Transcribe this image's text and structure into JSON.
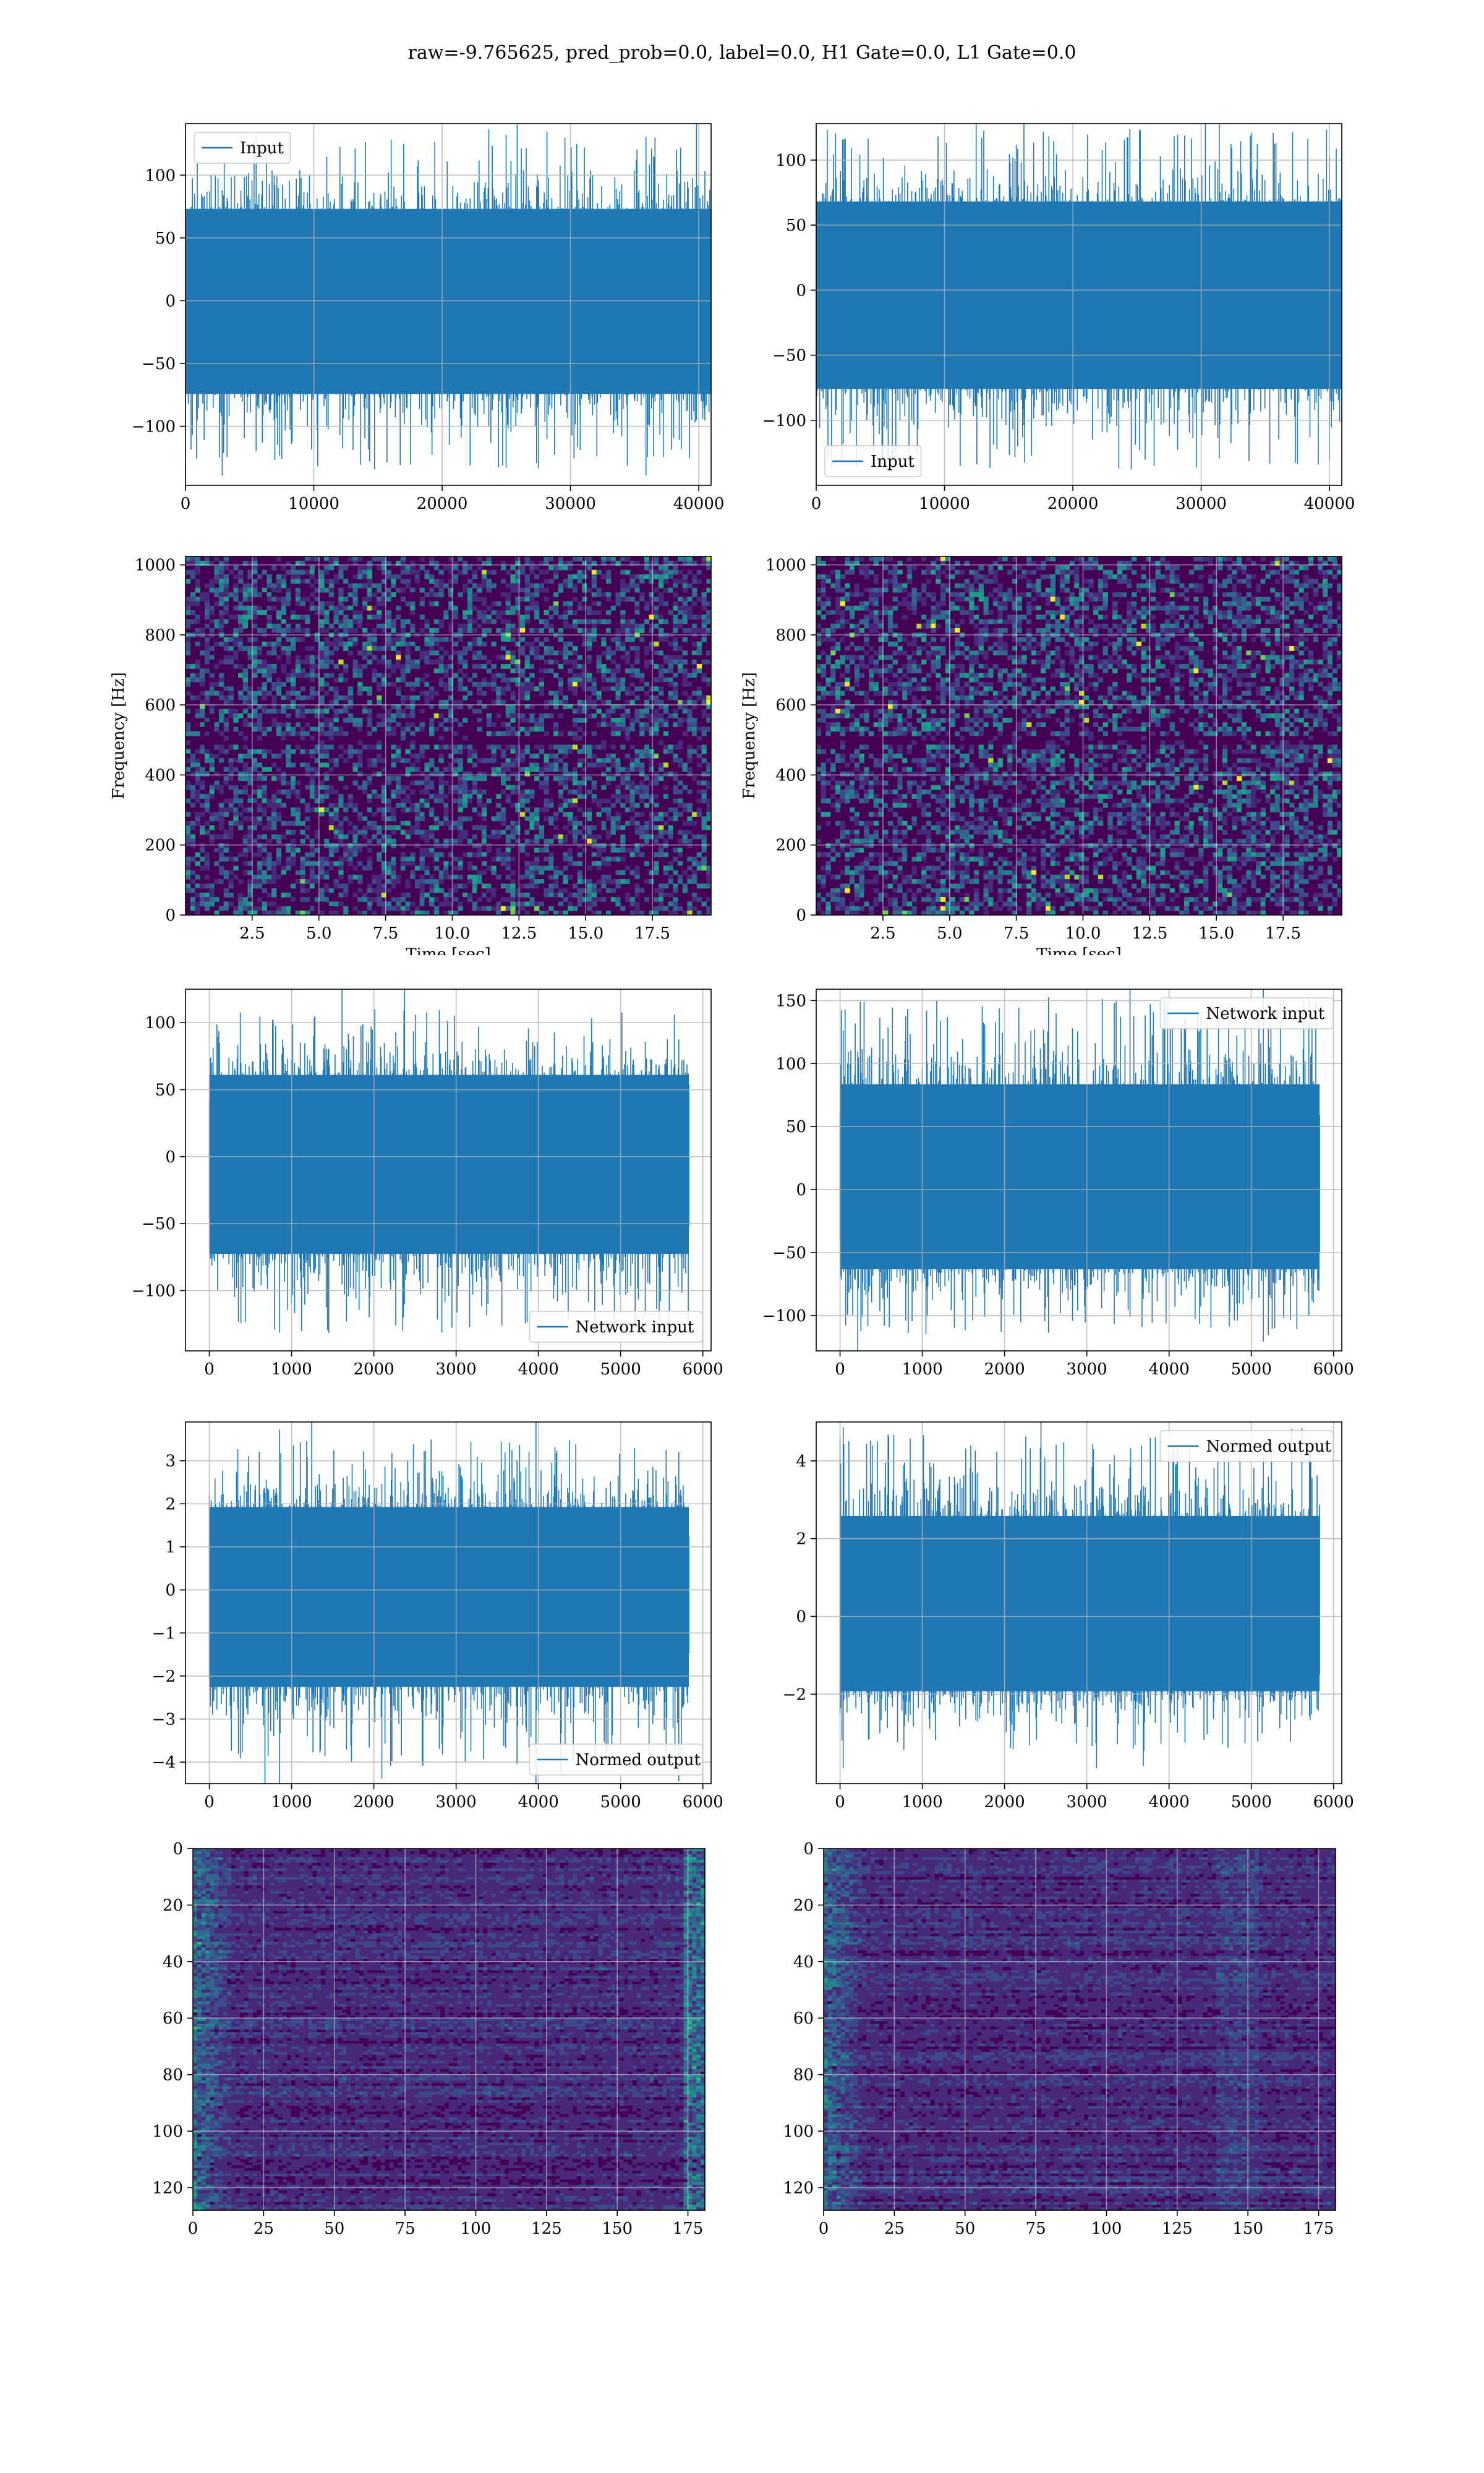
{
  "title": "raw=-9.765625, pred_prob=0.0, label=0.0, H1 Gate=0.0, L1 Gate=0.0",
  "colors": {
    "line": "#1f77b4",
    "grid": "#b0b0b0",
    "viridis": [
      "#440154",
      "#482878",
      "#3e4989",
      "#31688e",
      "#26828e",
      "#1f9e89",
      "#35b779",
      "#6ece58",
      "#b5de2b",
      "#fde725"
    ]
  },
  "chart_data": [
    {
      "id": "input_h1",
      "type": "line",
      "legend_loc": "upper left",
      "series": [
        {
          "name": "Input",
          "length": 40960,
          "amplitude_range": [
            -135,
            133
          ]
        }
      ],
      "xlim": [
        0,
        40960
      ],
      "ylim": [
        -147,
        141
      ],
      "xticks": [
        0,
        10000,
        20000,
        30000,
        40000
      ],
      "yticks": [
        -100,
        -50,
        0,
        50,
        100
      ],
      "xtick_labels": [
        "0",
        "10000",
        "20000",
        "30000",
        "40000"
      ],
      "ytick_labels": [
        "−100",
        "−50",
        "0",
        "50",
        "100"
      ],
      "xlabel": "",
      "ylabel": "",
      "grid": true
    },
    {
      "id": "input_l1",
      "type": "line",
      "legend_loc": "lower left",
      "series": [
        {
          "name": "Input",
          "length": 40960,
          "amplitude_range": [
            -138,
            124
          ]
        }
      ],
      "xlim": [
        0,
        40960
      ],
      "ylim": [
        -150,
        128
      ],
      "xticks": [
        0,
        10000,
        20000,
        30000,
        40000
      ],
      "yticks": [
        -100,
        -50,
        0,
        50,
        100
      ],
      "xtick_labels": [
        "0",
        "10000",
        "20000",
        "30000",
        "40000"
      ],
      "ytick_labels": [
        "−100",
        "−50",
        "0",
        "50",
        "100"
      ],
      "xlabel": "",
      "ylabel": "",
      "grid": true
    },
    {
      "id": "spec_h1",
      "type": "heatmap",
      "xlim": [
        0,
        19.7
      ],
      "ylim": [
        0,
        1024
      ],
      "xticks": [
        2.5,
        5,
        7.5,
        10,
        12.5,
        15,
        17.5
      ],
      "yticks": [
        0,
        200,
        400,
        600,
        800,
        1000
      ],
      "xtick_labels": [
        "2.5",
        "5.0",
        "7.5",
        "10.0",
        "12.5",
        "15.0",
        "17.5"
      ],
      "ytick_labels": [
        "0",
        "200",
        "400",
        "600",
        "800",
        "1000"
      ],
      "xlabel": "Time [sec]",
      "ylabel": "Frequency [Hz]",
      "grid": true
    },
    {
      "id": "spec_l1",
      "type": "heatmap",
      "xlim": [
        0,
        19.7
      ],
      "ylim": [
        0,
        1024
      ],
      "xticks": [
        2.5,
        5,
        7.5,
        10,
        12.5,
        15,
        17.5
      ],
      "yticks": [
        0,
        200,
        400,
        600,
        800,
        1000
      ],
      "xtick_labels": [
        "2.5",
        "5.0",
        "7.5",
        "10.0",
        "12.5",
        "15.0",
        "17.5"
      ],
      "ytick_labels": [
        "0",
        "200",
        "400",
        "600",
        "800",
        "1000"
      ],
      "xlabel": "Time [sec]",
      "ylabel": "Frequency [Hz]",
      "grid": true
    },
    {
      "id": "netin_h1",
      "type": "line",
      "legend_loc": "lower right",
      "series": [
        {
          "name": "Network input",
          "length": 5830,
          "amplitude_range": [
            -132,
            111
          ]
        }
      ],
      "xlim": [
        -290,
        6100
      ],
      "ylim": [
        -145,
        125
      ],
      "xticks": [
        0,
        1000,
        2000,
        3000,
        4000,
        5000,
        6000
      ],
      "yticks": [
        -100,
        -50,
        0,
        50,
        100
      ],
      "xtick_labels": [
        "0",
        "1000",
        "2000",
        "3000",
        "4000",
        "5000",
        "6000"
      ],
      "ytick_labels": [
        "−100",
        "−50",
        "0",
        "50",
        "100"
      ],
      "xlabel": "",
      "ylabel": "",
      "grid": true
    },
    {
      "id": "netin_l1",
      "type": "line",
      "legend_loc": "upper right",
      "series": [
        {
          "name": "Network input",
          "length": 5830,
          "amplitude_range": [
            -115,
            152
          ]
        }
      ],
      "xlim": [
        -290,
        6100
      ],
      "ylim": [
        -128,
        159
      ],
      "xticks": [
        0,
        1000,
        2000,
        3000,
        4000,
        5000,
        6000
      ],
      "yticks": [
        -100,
        -50,
        0,
        50,
        100,
        150
      ],
      "xtick_labels": [
        "0",
        "1000",
        "2000",
        "3000",
        "4000",
        "5000",
        "6000"
      ],
      "ytick_labels": [
        "−100",
        "−50",
        "0",
        "50",
        "100",
        "150"
      ],
      "xlabel": "",
      "ylabel": "",
      "grid": true
    },
    {
      "id": "normed_h1",
      "type": "line",
      "legend_loc": "lower right",
      "series": [
        {
          "name": "Normed output",
          "length": 5830,
          "amplitude_range": [
            -4.1,
            3.5
          ]
        }
      ],
      "xlim": [
        -290,
        6100
      ],
      "ylim": [
        -4.5,
        3.9
      ],
      "xticks": [
        0,
        1000,
        2000,
        3000,
        4000,
        5000,
        6000
      ],
      "yticks": [
        -4,
        -3,
        -2,
        -1,
        0,
        1,
        2,
        3
      ],
      "xtick_labels": [
        "0",
        "1000",
        "2000",
        "3000",
        "4000",
        "5000",
        "6000"
      ],
      "ytick_labels": [
        "−4",
        "−3",
        "−2",
        "−1",
        "0",
        "1",
        "2",
        "3"
      ],
      "xlabel": "",
      "ylabel": "",
      "grid": true
    },
    {
      "id": "normed_l1",
      "type": "line",
      "legend_loc": "upper right",
      "series": [
        {
          "name": "Normed output",
          "length": 5830,
          "amplitude_range": [
            -3.5,
            4.7
          ]
        }
      ],
      "xlim": [
        -290,
        6100
      ],
      "ylim": [
        -4.3,
        5.0
      ],
      "xticks": [
        0,
        1000,
        2000,
        3000,
        4000,
        5000,
        6000
      ],
      "yticks": [
        -2,
        0,
        2,
        4
      ],
      "xtick_labels": [
        "0",
        "1000",
        "2000",
        "3000",
        "4000",
        "5000",
        "6000"
      ],
      "ytick_labels": [
        "−2",
        "0",
        "2",
        "4"
      ],
      "xlabel": "",
      "ylabel": "",
      "grid": true
    },
    {
      "id": "feat_h1",
      "type": "heatmap",
      "xlim": [
        0,
        181
      ],
      "ylim": [
        0,
        128
      ],
      "y_inverted": true,
      "xticks": [
        0,
        25,
        50,
        75,
        100,
        125,
        150,
        175
      ],
      "yticks": [
        0,
        20,
        40,
        60,
        80,
        100,
        120
      ],
      "xtick_labels": [
        "0",
        "25",
        "50",
        "75",
        "100",
        "125",
        "150",
        "175"
      ],
      "ytick_labels": [
        "0",
        "20",
        "40",
        "60",
        "80",
        "100",
        "120"
      ],
      "xlabel": "",
      "ylabel": "",
      "grid": true
    },
    {
      "id": "feat_l1",
      "type": "heatmap",
      "xlim": [
        0,
        181
      ],
      "ylim": [
        0,
        128
      ],
      "y_inverted": true,
      "xticks": [
        0,
        25,
        50,
        75,
        100,
        125,
        150,
        175
      ],
      "yticks": [
        0,
        20,
        40,
        60,
        80,
        100,
        120
      ],
      "xtick_labels": [
        "0",
        "25",
        "50",
        "75",
        "100",
        "125",
        "150",
        "175"
      ],
      "ytick_labels": [
        "0",
        "20",
        "40",
        "60",
        "80",
        "100",
        "120"
      ],
      "xlabel": "",
      "ylabel": "",
      "grid": true
    }
  ]
}
